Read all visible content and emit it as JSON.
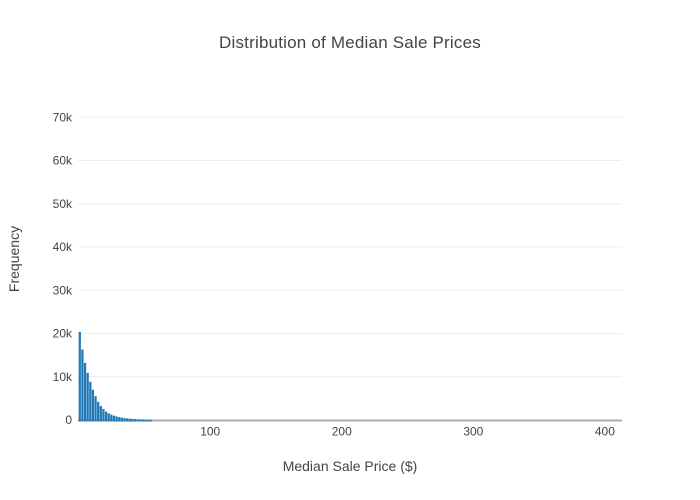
{
  "title": "Distribution of Median Sale Prices",
  "colors": {
    "background": "#ffffff",
    "bar": "#1f77b4",
    "grid": "#ececec",
    "axis_line": "#a9a9a9",
    "text": "#444444"
  },
  "chart_data": {
    "type": "bar",
    "subtype": "histogram",
    "title": "Distribution of Median Sale Prices",
    "xlabel": "Median Sale Price ($)",
    "ylabel": "Frequency",
    "bin_start": 0,
    "bin_width": 2,
    "frequencies": [
      20400,
      16300,
      13200,
      10900,
      8850,
      7000,
      5500,
      4200,
      3250,
      2550,
      1950,
      1550,
      1250,
      1000,
      820,
      670,
      550,
      450,
      370,
      310,
      255,
      210,
      175,
      145,
      120,
      100,
      80,
      65
    ],
    "xlim": [
      -0.5,
      413
    ],
    "ylim": [
      0,
      74000
    ],
    "xticks": [
      {
        "value": 100,
        "label": "100"
      },
      {
        "value": 200,
        "label": "200"
      },
      {
        "value": 300,
        "label": "300"
      },
      {
        "value": 400,
        "label": "400"
      }
    ],
    "yticks": [
      {
        "value": 0,
        "label": "0"
      },
      {
        "value": 10000,
        "label": "10k"
      },
      {
        "value": 20000,
        "label": "20k"
      },
      {
        "value": 30000,
        "label": "30k"
      },
      {
        "value": 40000,
        "label": "40k"
      },
      {
        "value": 50000,
        "label": "50k"
      },
      {
        "value": 60000,
        "label": "60k"
      },
      {
        "value": 70000,
        "label": "70k"
      }
    ],
    "grid": "horizontal",
    "legend": false
  }
}
